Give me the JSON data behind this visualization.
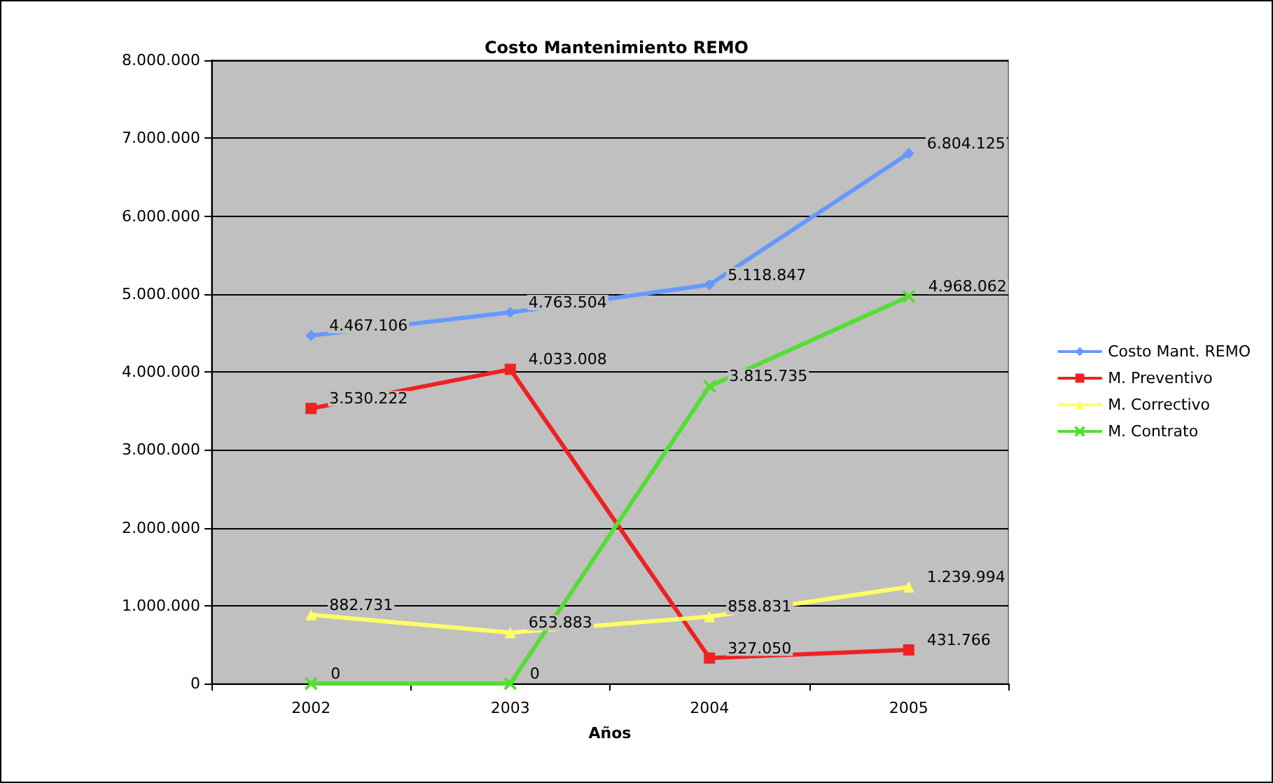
{
  "chart_data": {
    "type": "line",
    "title": "Costo Mantenimiento REMO",
    "xlabel": "Años",
    "categories": [
      "2002",
      "2003",
      "2004",
      "2005"
    ],
    "series": [
      {
        "name": "Costo Mant. REMO",
        "color": "#6699ff",
        "marker": "diamond",
        "values": [
          4467106,
          4763504,
          5118847,
          6804125
        ],
        "value_labels": [
          "4.467.106",
          "4.763.504",
          "5.118.847",
          "6.804.125"
        ]
      },
      {
        "name": "M. Preventivo",
        "color": "#ee2222",
        "marker": "square",
        "values": [
          3530222,
          4033008,
          327050,
          431766
        ],
        "value_labels": [
          "3.530.222",
          "4.033.008",
          "327.050",
          "431.766"
        ]
      },
      {
        "name": "M. Correctivo",
        "color": "#ffff66",
        "marker": "triangle",
        "values": [
          882731,
          653883,
          858831,
          1239994
        ],
        "value_labels": [
          "882.731",
          "653.883",
          "858.831",
          "1.239.994"
        ]
      },
      {
        "name": "M. Contrato",
        "color": "#55dd33",
        "marker": "cross",
        "values": [
          0,
          0,
          3815735,
          4968062
        ],
        "value_labels": [
          "0",
          "0",
          "3.815.735",
          "4.968.062"
        ]
      }
    ],
    "ylim": [
      0,
      8000000
    ],
    "yticks": [
      {
        "value": 0,
        "label": "0"
      },
      {
        "value": 1000000,
        "label": "1.000.000"
      },
      {
        "value": 2000000,
        "label": "2.000.000"
      },
      {
        "value": 3000000,
        "label": "3.000.000"
      },
      {
        "value": 4000000,
        "label": "4.000.000"
      },
      {
        "value": 5000000,
        "label": "5.000.000"
      },
      {
        "value": 6000000,
        "label": "6.000.000"
      },
      {
        "value": 7000000,
        "label": "7.000.000"
      },
      {
        "value": 8000000,
        "label": "8.000.000"
      }
    ],
    "grid": "y",
    "legend": "right",
    "line_style": "solid"
  }
}
